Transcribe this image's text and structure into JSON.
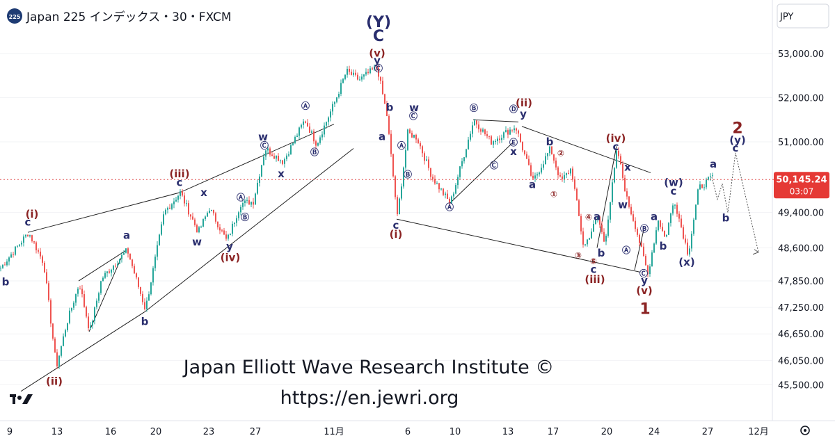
{
  "header": {
    "badge": "225",
    "symbol": "Japan 225 インデックス・30・FXCM",
    "currency_button": "JPY"
  },
  "watermark": {
    "line1": "Japan Elliott Wave Research Institute ©",
    "line2": "https://en.jewri.org"
  },
  "price_label": {
    "price": "50,145.24",
    "countdown": "03:07"
  },
  "colors": {
    "up": "#26a69a",
    "down": "#ef5350",
    "navy": "#2a2e6e",
    "maroon": "#8b2323",
    "price_line": "#e05050"
  },
  "chart_data": {
    "type": "candlestick",
    "title": "Japan 225 インデックス・30・FXCM",
    "xlabel": "",
    "ylabel": "",
    "ylim": [
      45200,
      53800
    ],
    "y_ticks": [
      "53,000.00",
      "52,000.00",
      "51,000.00",
      "49,400.00",
      "48,600.00",
      "47,850.00",
      "47,250.00",
      "46,650.00",
      "46,050.00",
      "45,500.00"
    ],
    "x_ticks": [
      "9",
      "13",
      "16",
      "20",
      "23",
      "27",
      "11月",
      "6",
      "10",
      "13",
      "17",
      "20",
      "24",
      "27",
      "12月"
    ],
    "last_price": 50145.24,
    "price_path": [
      {
        "x": 0,
        "p": 48150
      },
      {
        "x": 40,
        "p": 48950
      },
      {
        "x": 62,
        "p": 48250
      },
      {
        "x": 80,
        "p": 45900
      },
      {
        "x": 95,
        "p": 46900
      },
      {
        "x": 113,
        "p": 47800
      },
      {
        "x": 128,
        "p": 46700
      },
      {
        "x": 145,
        "p": 47900
      },
      {
        "x": 162,
        "p": 48200
      },
      {
        "x": 182,
        "p": 48550
      },
      {
        "x": 208,
        "p": 47200
      },
      {
        "x": 235,
        "p": 49400
      },
      {
        "x": 258,
        "p": 49850
      },
      {
        "x": 284,
        "p": 48950
      },
      {
        "x": 300,
        "p": 49500
      },
      {
        "x": 325,
        "p": 48750
      },
      {
        "x": 345,
        "p": 49600
      },
      {
        "x": 363,
        "p": 49650
      },
      {
        "x": 380,
        "p": 50850
      },
      {
        "x": 406,
        "p": 50550
      },
      {
        "x": 437,
        "p": 51500
      },
      {
        "x": 454,
        "p": 50950
      },
      {
        "x": 480,
        "p": 51900
      },
      {
        "x": 497,
        "p": 52600
      },
      {
        "x": 515,
        "p": 52400
      },
      {
        "x": 541,
        "p": 52700
      },
      {
        "x": 555,
        "p": 51600
      },
      {
        "x": 570,
        "p": 49300
      },
      {
        "x": 585,
        "p": 51200
      },
      {
        "x": 598,
        "p": 51100
      },
      {
        "x": 620,
        "p": 50200
      },
      {
        "x": 646,
        "p": 49600
      },
      {
        "x": 680,
        "p": 51500
      },
      {
        "x": 705,
        "p": 51000
      },
      {
        "x": 740,
        "p": 51350
      },
      {
        "x": 765,
        "p": 50100
      },
      {
        "x": 790,
        "p": 50850
      },
      {
        "x": 805,
        "p": 50100
      },
      {
        "x": 820,
        "p": 50400
      },
      {
        "x": 838,
        "p": 48600
      },
      {
        "x": 858,
        "p": 49300
      },
      {
        "x": 868,
        "p": 48700
      },
      {
        "x": 886,
        "p": 50850
      },
      {
        "x": 900,
        "p": 49700
      },
      {
        "x": 912,
        "p": 49100
      },
      {
        "x": 930,
        "p": 48000
      },
      {
        "x": 945,
        "p": 49250
      },
      {
        "x": 955,
        "p": 48800
      },
      {
        "x": 968,
        "p": 49700
      },
      {
        "x": 988,
        "p": 48450
      },
      {
        "x": 1003,
        "p": 49950
      },
      {
        "x": 1023,
        "p": 50200
      }
    ],
    "channels": [
      [
        {
          "x": 40,
          "p": 48950
        },
        {
          "x": 258,
          "p": 49850
        },
        {
          "x": 480,
          "p": 51400
        }
      ],
      [
        {
          "x": 30,
          "p": 45350
        },
        {
          "x": 208,
          "p": 47150
        },
        {
          "x": 508,
          "p": 50850
        }
      ],
      [
        {
          "x": 570,
          "p": 49250
        },
        {
          "x": 920,
          "p": 48050
        }
      ],
      [
        {
          "x": 750,
          "p": 51350
        },
        {
          "x": 935,
          "p": 50300
        }
      ],
      [
        {
          "x": 680,
          "p": 51500
        },
        {
          "x": 745,
          "p": 51450
        }
      ],
      [
        {
          "x": 113,
          "p": 47850
        },
        {
          "x": 182,
          "p": 48550
        }
      ],
      [
        {
          "x": 128,
          "p": 46700
        },
        {
          "x": 175,
          "p": 48400
        }
      ],
      [
        {
          "x": 646,
          "p": 49600
        },
        {
          "x": 738,
          "p": 51000
        }
      ],
      [
        {
          "x": 858,
          "p": 48600
        },
        {
          "x": 886,
          "p": 50900
        }
      ],
      [
        {
          "x": 912,
          "p": 48100
        },
        {
          "x": 925,
          "p": 49000
        }
      ]
    ],
    "projection": [
      {
        "x": 1023,
        "p": 50200
      },
      {
        "x": 1031,
        "p": 49700
      },
      {
        "x": 1038,
        "p": 50050
      },
      {
        "x": 1046,
        "p": 49400
      },
      {
        "x": 1057,
        "p": 50750
      },
      {
        "x": 1090,
        "p": 48500
      }
    ],
    "wave_labels": [
      {
        "t": "(Y)",
        "x": 544,
        "p": 53600,
        "c": "navy",
        "s": 22
      },
      {
        "t": "C",
        "x": 544,
        "p": 53280,
        "c": "navy",
        "s": 22
      },
      {
        "t": "(v)",
        "x": 542,
        "p": 52930,
        "c": "maroon",
        "s": 15
      },
      {
        "t": "y",
        "x": 542,
        "p": 52760,
        "c": "navy",
        "s": 15
      },
      {
        "t": "Ⓒ",
        "x": 544,
        "p": 52600,
        "c": "navy",
        "s": 12
      },
      {
        "t": "(i)",
        "x": 46,
        "p": 49280,
        "c": "maroon",
        "s": 15
      },
      {
        "t": "c",
        "x": 40,
        "p": 49100,
        "c": "navy",
        "s": 15
      },
      {
        "t": "b",
        "x": 8,
        "p": 47750,
        "c": "navy",
        "s": 15
      },
      {
        "t": "(ii)",
        "x": 78,
        "p": 45500,
        "c": "maroon",
        "s": 15
      },
      {
        "t": "a",
        "x": 182,
        "p": 48800,
        "c": "navy",
        "s": 15
      },
      {
        "t": "b",
        "x": 208,
        "p": 46850,
        "c": "navy",
        "s": 15
      },
      {
        "t": "(iii)",
        "x": 258,
        "p": 50200,
        "c": "maroon",
        "s": 15
      },
      {
        "t": "c",
        "x": 258,
        "p": 50000,
        "c": "navy",
        "s": 15
      },
      {
        "t": "x",
        "x": 293,
        "p": 49770,
        "c": "navy",
        "s": 15
      },
      {
        "t": "w",
        "x": 283,
        "p": 48650,
        "c": "navy",
        "s": 15
      },
      {
        "t": "y",
        "x": 330,
        "p": 48550,
        "c": "navy",
        "s": 15
      },
      {
        "t": "(iv)",
        "x": 331,
        "p": 48300,
        "c": "maroon",
        "s": 15
      },
      {
        "t": "Ⓐ",
        "x": 346,
        "p": 49680,
        "c": "navy",
        "s": 12
      },
      {
        "t": "Ⓑ",
        "x": 352,
        "p": 49230,
        "c": "navy",
        "s": 12
      },
      {
        "t": "w",
        "x": 378,
        "p": 51030,
        "c": "navy",
        "s": 15
      },
      {
        "t": "Ⓒ",
        "x": 380,
        "p": 50850,
        "c": "navy",
        "s": 12
      },
      {
        "t": "x",
        "x": 404,
        "p": 50200,
        "c": "navy",
        "s": 15
      },
      {
        "t": "Ⓐ",
        "x": 439,
        "p": 51750,
        "c": "navy",
        "s": 12
      },
      {
        "t": "Ⓑ",
        "x": 452,
        "p": 50700,
        "c": "navy",
        "s": 12
      },
      {
        "t": "b",
        "x": 560,
        "p": 51700,
        "c": "navy",
        "s": 15
      },
      {
        "t": "a",
        "x": 549,
        "p": 51040,
        "c": "navy",
        "s": 15
      },
      {
        "t": "w",
        "x": 595,
        "p": 51690,
        "c": "navy",
        "s": 15
      },
      {
        "t": "Ⓒ",
        "x": 594,
        "p": 51520,
        "c": "navy",
        "s": 12
      },
      {
        "t": "Ⓐ",
        "x": 577,
        "p": 50850,
        "c": "navy",
        "s": 12
      },
      {
        "t": "Ⓑ",
        "x": 586,
        "p": 50200,
        "c": "navy",
        "s": 12
      },
      {
        "t": "c",
        "x": 569,
        "p": 49030,
        "c": "navy",
        "s": 15
      },
      {
        "t": "(i)",
        "x": 569,
        "p": 48830,
        "c": "maroon",
        "s": 15
      },
      {
        "t": "Ⓑ",
        "x": 681,
        "p": 51700,
        "c": "navy",
        "s": 12
      },
      {
        "t": "Ⓐ",
        "x": 646,
        "p": 49460,
        "c": "navy",
        "s": 12
      },
      {
        "t": "Ⓒ",
        "x": 710,
        "p": 50400,
        "c": "navy",
        "s": 12
      },
      {
        "t": "Ⓓ",
        "x": 738,
        "p": 51680,
        "c": "navy",
        "s": 12
      },
      {
        "t": "(ii)",
        "x": 753,
        "p": 51800,
        "c": "maroon",
        "s": 15
      },
      {
        "t": "y",
        "x": 752,
        "p": 51550,
        "c": "navy",
        "s": 15
      },
      {
        "t": "Ⓔ",
        "x": 738,
        "p": 50920,
        "c": "navy",
        "s": 12
      },
      {
        "t": "x",
        "x": 738,
        "p": 50700,
        "c": "navy",
        "s": 15
      },
      {
        "t": "b",
        "x": 790,
        "p": 50920,
        "c": "navy",
        "s": 15
      },
      {
        "t": "②",
        "x": 806,
        "p": 50680,
        "c": "maroon",
        "s": 12
      },
      {
        "t": "a",
        "x": 765,
        "p": 49950,
        "c": "navy",
        "s": 15
      },
      {
        "t": "①",
        "x": 796,
        "p": 49750,
        "c": "maroon",
        "s": 12
      },
      {
        "t": "④",
        "x": 846,
        "p": 49230,
        "c": "maroon",
        "s": 12
      },
      {
        "t": "a",
        "x": 858,
        "p": 49230,
        "c": "navy",
        "s": 15
      },
      {
        "t": "③",
        "x": 831,
        "p": 48360,
        "c": "maroon",
        "s": 12
      },
      {
        "t": "b",
        "x": 864,
        "p": 48400,
        "c": "navy",
        "s": 15
      },
      {
        "t": "⑤",
        "x": 853,
        "p": 48230,
        "c": "maroon",
        "s": 12
      },
      {
        "t": "c",
        "x": 853,
        "p": 48030,
        "c": "navy",
        "s": 15
      },
      {
        "t": "(iii)",
        "x": 855,
        "p": 47800,
        "c": "maroon",
        "s": 15
      },
      {
        "t": "(iv)",
        "x": 885,
        "p": 51000,
        "c": "maroon",
        "s": 15
      },
      {
        "t": "c",
        "x": 885,
        "p": 50810,
        "c": "navy",
        "s": 15
      },
      {
        "t": "x",
        "x": 902,
        "p": 50350,
        "c": "navy",
        "s": 15
      },
      {
        "t": "w",
        "x": 895,
        "p": 49500,
        "c": "navy",
        "s": 15
      },
      {
        "t": "Ⓑ",
        "x": 926,
        "p": 48970,
        "c": "navy",
        "s": 12
      },
      {
        "t": "Ⓐ",
        "x": 900,
        "p": 48480,
        "c": "navy",
        "s": 12
      },
      {
        "t": "Ⓒ",
        "x": 925,
        "p": 47950,
        "c": "navy",
        "s": 12
      },
      {
        "t": "y",
        "x": 926,
        "p": 47780,
        "c": "navy",
        "s": 15
      },
      {
        "t": "(v)",
        "x": 926,
        "p": 47550,
        "c": "maroon",
        "s": 15
      },
      {
        "t": "1",
        "x": 927,
        "p": 47100,
        "c": "maroon",
        "s": 22
      },
      {
        "t": "a",
        "x": 940,
        "p": 49230,
        "c": "navy",
        "s": 15
      },
      {
        "t": "b",
        "x": 953,
        "p": 48560,
        "c": "navy",
        "s": 15
      },
      {
        "t": "(w)",
        "x": 968,
        "p": 50000,
        "c": "navy",
        "s": 15
      },
      {
        "t": "c",
        "x": 968,
        "p": 49800,
        "c": "navy",
        "s": 15
      },
      {
        "t": "(x)",
        "x": 987,
        "p": 48200,
        "c": "navy",
        "s": 15
      },
      {
        "t": "a",
        "x": 1025,
        "p": 50420,
        "c": "navy",
        "s": 15
      },
      {
        "t": "b",
        "x": 1043,
        "p": 49200,
        "c": "navy",
        "s": 15
      },
      {
        "t": "2",
        "x": 1060,
        "p": 51200,
        "c": "maroon",
        "s": 22
      },
      {
        "t": "(y)",
        "x": 1060,
        "p": 50960,
        "c": "navy",
        "s": 15
      },
      {
        "t": "c",
        "x": 1057,
        "p": 50780,
        "c": "navy",
        "s": 15
      }
    ]
  }
}
